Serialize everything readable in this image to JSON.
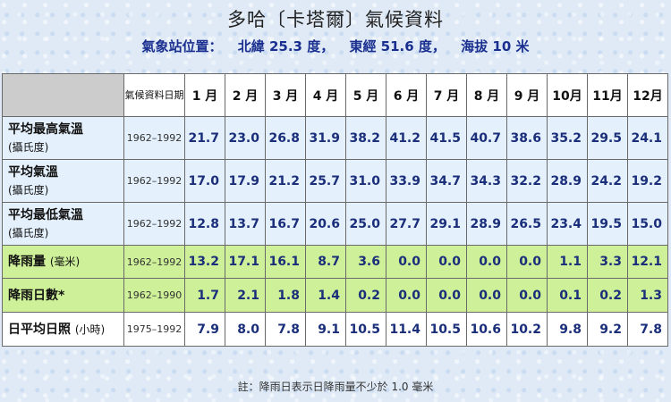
{
  "title": "多哈〔卡塔爾〕氣候資料",
  "subtitle": {
    "station": "氣象站位置：",
    "lat": "北緯 25.3 度，",
    "lon": "東經 51.6 度，",
    "alt": "海拔 10 米"
  },
  "header": {
    "period_label": "氣候資料日期",
    "months": [
      "1 月",
      "2 月",
      "3 月",
      "4 月",
      "5 月",
      "6 月",
      "7 月",
      "8 月",
      "9 月",
      "10月",
      "11月",
      "12月"
    ]
  },
  "rows": [
    {
      "label": "平均最高氣溫",
      "unit": "(攝氏度)",
      "period": "1962–1992",
      "values": [
        "21.7",
        "23.0",
        "26.8",
        "31.9",
        "38.2",
        "41.2",
        "41.5",
        "40.7",
        "38.6",
        "35.2",
        "29.5",
        "24.1"
      ]
    },
    {
      "label": "平均氣溫",
      "unit": "(攝氏度)",
      "period": "1962–1992",
      "values": [
        "17.0",
        "17.9",
        "21.2",
        "25.7",
        "31.0",
        "33.9",
        "34.7",
        "34.3",
        "32.2",
        "28.9",
        "24.2",
        "19.2"
      ]
    },
    {
      "label": "平均最低氣溫",
      "unit": "(攝氏度)",
      "period": "1962–1992",
      "values": [
        "12.8",
        "13.7",
        "16.7",
        "20.6",
        "25.0",
        "27.7",
        "29.1",
        "28.9",
        "26.5",
        "23.4",
        "19.5",
        "15.0"
      ]
    },
    {
      "label": "降雨量",
      "unit": "(毫米)",
      "period": "1962–1992",
      "values": [
        "13.2",
        "17.1",
        "16.1",
        "8.7",
        "3.6",
        "0.0",
        "0.0",
        "0.0",
        "0.0",
        "1.1",
        "3.3",
        "12.1"
      ]
    },
    {
      "label": "降雨日數*",
      "unit": "",
      "period": "1962–1990",
      "values": [
        "1.7",
        "2.1",
        "1.8",
        "1.4",
        "0.2",
        "0.0",
        "0.0",
        "0.0",
        "0.0",
        "0.1",
        "0.2",
        "1.3"
      ]
    },
    {
      "label": "日平均日照",
      "unit": "(小時)",
      "period": "1975–1992",
      "values": [
        "7.9",
        "8.0",
        "7.8",
        "9.1",
        "10.5",
        "11.4",
        "10.5",
        "10.6",
        "10.2",
        "9.8",
        "9.2",
        "7.8"
      ]
    }
  ],
  "note": "註：降雨日表示日降雨量不少於 1.0 毫米"
}
